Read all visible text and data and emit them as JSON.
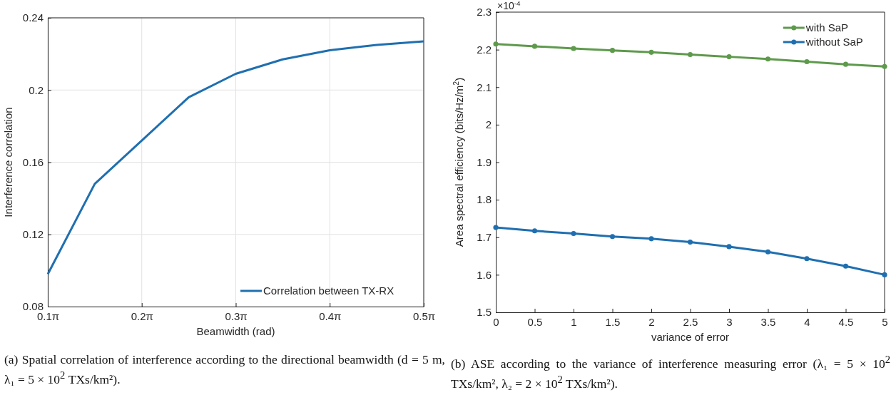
{
  "chart_data": [
    {
      "type": "line",
      "xlabel": "Beamwidth (rad)",
      "ylabel": "Interference correlation",
      "x": [
        0.3142,
        0.4712,
        0.6283,
        0.7854,
        0.9425,
        1.0996,
        1.2566,
        1.4137,
        1.5708
      ],
      "series": [
        {
          "name": "Correlation between TX-RX",
          "color": "#1f6fb0",
          "values": [
            0.098,
            0.148,
            0.172,
            0.196,
            0.209,
            0.217,
            0.222,
            0.225,
            0.227
          ]
        }
      ],
      "xlim": [
        0.3142,
        1.5708
      ],
      "xticks": [
        {
          "value": 0.3142,
          "label": "0.1π"
        },
        {
          "value": 0.6283,
          "label": "0.2π"
        },
        {
          "value": 0.9425,
          "label": "0.3π"
        },
        {
          "value": 1.2566,
          "label": "0.4π"
        },
        {
          "value": 1.5708,
          "label": "0.5π"
        }
      ],
      "ylim": [
        0.08,
        0.24
      ],
      "yticks": [
        0.08,
        0.12,
        0.16,
        0.2,
        0.24
      ],
      "grid": true,
      "legend": "bottom right",
      "marker": "none",
      "line_style": "solid",
      "annotations": [
        "(a) Spatial correlation of interference according to the directional beamwidth (d = 5 m, λ₁ = 5 × 10$^{2}$ TXs/km²)."
      ]
    },
    {
      "type": "line",
      "xlabel": "variance of error",
      "ylabel": "Area spectral efficiency (bits/Hz/m$^{2}$)",
      "x": [
        0,
        0.5,
        1,
        1.5,
        2,
        2.5,
        3,
        3.5,
        4,
        4.5,
        5
      ],
      "series": [
        {
          "name": "with SaP",
          "color": "#5e9a4c",
          "values": [
            2.215,
            2.209,
            2.203,
            2.198,
            2.193,
            2.187,
            2.181,
            2.175,
            2.168,
            2.161,
            2.155
          ]
        },
        {
          "name": "without SaP",
          "color": "#1f6fb0",
          "values": [
            1.726,
            1.717,
            1.71,
            1.702,
            1.696,
            1.687,
            1.675,
            1.661,
            1.643,
            1.623,
            1.6
          ]
        }
      ],
      "xlim": [
        0,
        5
      ],
      "xticks": [
        0,
        0.5,
        1,
        1.5,
        2,
        2.5,
        3,
        3.5,
        4,
        4.5,
        5
      ],
      "ylim": [
        1.5,
        2.3
      ],
      "yticks": [
        1.5,
        1.6,
        1.7,
        1.8,
        1.9,
        2,
        2.1,
        2.2,
        2.3
      ],
      "grid": false,
      "legend": "top right",
      "marker": "circle",
      "line_style": "solid",
      "annotations": [
        "×10$^{-4}$",
        "(b) ASE according to the variance of interference measuring error (λ₁ = 5 × 10$^{2}$ TXs/km², λ₂ = 2 × 10$^{2}$ TXs/km²)."
      ]
    }
  ]
}
